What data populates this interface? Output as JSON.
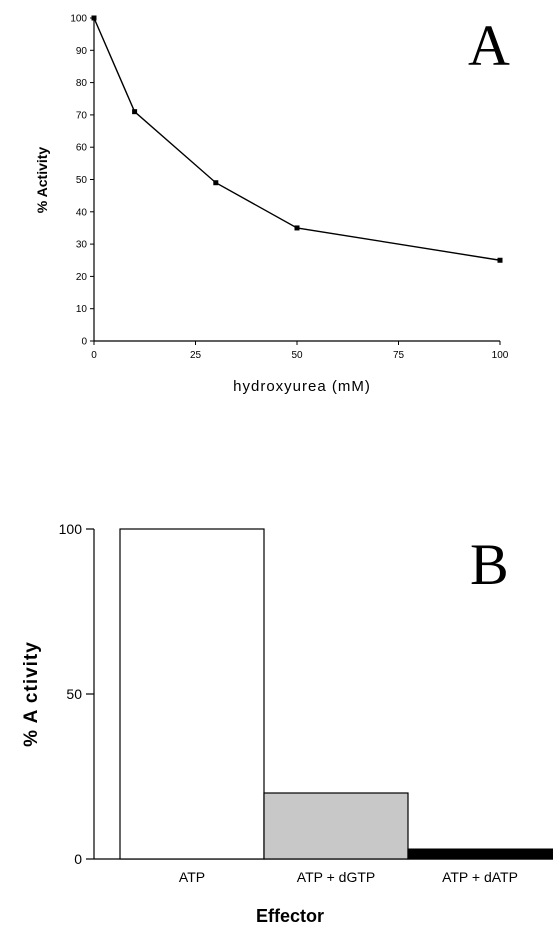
{
  "chart_data": [
    {
      "panel": "A",
      "type": "line",
      "xlabel": "hydroxyurea (mM)",
      "ylabel": "% Activity",
      "x": [
        0,
        10,
        30,
        50,
        100
      ],
      "y": [
        100,
        71,
        49,
        35,
        25
      ],
      "xticks": [
        "0",
        "25",
        "50",
        "75",
        "100"
      ],
      "yticks": [
        "0",
        "10",
        "20",
        "30",
        "40",
        "50",
        "60",
        "70",
        "80",
        "90",
        "100"
      ],
      "xlim": [
        0,
        100
      ],
      "ylim": [
        0,
        100
      ],
      "colors": {
        "line": "#000000"
      }
    },
    {
      "panel": "B",
      "type": "bar",
      "xlabel": "Effector",
      "ylabel": "% A ctivity",
      "categories": [
        "ATP",
        "ATP + dGTP",
        "ATP + dATP"
      ],
      "values": [
        100,
        20,
        3
      ],
      "yticks": [
        "0",
        "50",
        "100"
      ],
      "ylim": [
        0,
        100
      ],
      "colors": {
        "bars": [
          "#ffffff",
          "#c8c8c8",
          "#000000"
        ],
        "outline": "#000000"
      }
    }
  ]
}
